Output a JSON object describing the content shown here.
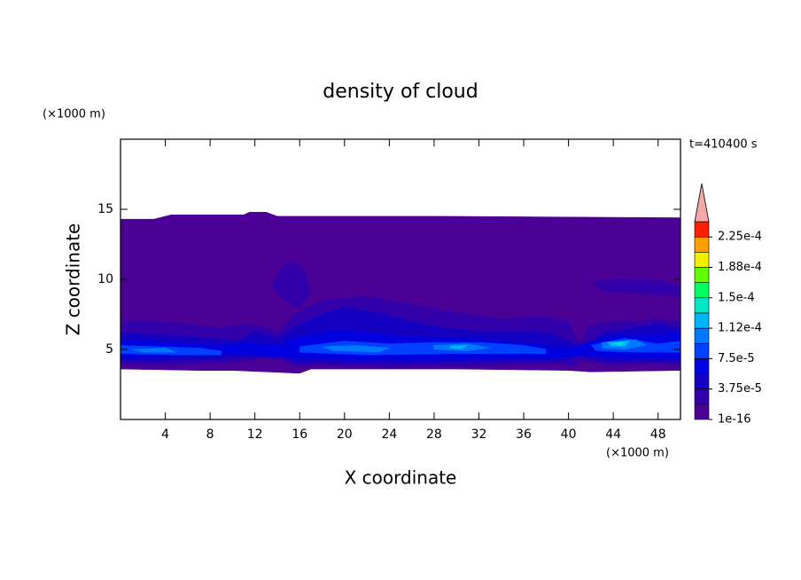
{
  "chart_data": {
    "type": "contour",
    "title": "density of cloud",
    "x_label": "X coordinate",
    "y_label": "Z coordinate",
    "x_unit": "(×1000 m)",
    "y_unit": "(×1000 m)",
    "time_label": "t=410400 s",
    "xlim": [
      0,
      50
    ],
    "ylim": [
      0,
      20
    ],
    "xticks": [
      4,
      8,
      12,
      16,
      20,
      24,
      28,
      32,
      36,
      40,
      44,
      48
    ],
    "yticks": [
      5,
      10,
      15
    ],
    "levels": [
      1e-16,
      1.875e-05,
      3.75e-05,
      5.625e-05,
      7.5e-05,
      9.375e-05,
      0.0001125,
      0.00013125,
      0.00015,
      0.00016875,
      0.0001875,
      0.00020625,
      0.000225,
      0.00024375
    ],
    "colors": [
      "#4b0096",
      "#3200aa",
      "#1400c0",
      "#0000e0",
      "#0040ff",
      "#0078ff",
      "#00b4ff",
      "#00e8c8",
      "#00ff60",
      "#60ff00",
      "#f0f000",
      "#ffa000",
      "#ff2000"
    ],
    "extend_color": "#f4a8a8",
    "colorbar_ticks": [
      {
        "value": 1e-16,
        "label": "1e-16"
      },
      {
        "value": 3.75e-05,
        "label": "3.75e-5"
      },
      {
        "value": 7.5e-05,
        "label": "7.5e-5"
      },
      {
        "value": 0.0001125,
        "label": "1.12e-4"
      },
      {
        "value": 0.00015,
        "label": "1.5e-4"
      },
      {
        "value": 0.0001875,
        "label": "1.88e-4"
      },
      {
        "value": 0.000225,
        "label": "2.25e-4"
      }
    ],
    "regions": [
      {
        "level": 1e-16,
        "x": [
          0,
          3,
          4.5,
          11,
          11.5,
          13,
          14,
          29,
          50,
          50,
          42,
          40,
          30,
          17,
          16,
          13,
          10,
          7,
          0
        ],
        "z": [
          14.3,
          14.3,
          14.6,
          14.6,
          14.8,
          14.8,
          14.5,
          14.5,
          14.4,
          3.5,
          3.4,
          3.5,
          3.6,
          3.6,
          3.3,
          3.4,
          3.5,
          3.5,
          3.6
        ]
      },
      {
        "level": 1.875e-05,
        "x": [
          0,
          3,
          6,
          9,
          11,
          12.5,
          14,
          15.5,
          18,
          22,
          26,
          30,
          34,
          38,
          40,
          41,
          42,
          44,
          46,
          48,
          50,
          50,
          47,
          44,
          41,
          40.5,
          39,
          36,
          32,
          28,
          24,
          20,
          17,
          15.5,
          14.5,
          13,
          11,
          8,
          4,
          0
        ],
        "z": [
          7,
          7,
          6.8,
          6.5,
          6.8,
          6.7,
          6.2,
          7.5,
          8.5,
          8.8,
          8.2,
          7.6,
          7.2,
          7.3,
          7,
          5.5,
          6.8,
          7,
          7,
          7.2,
          7,
          3.9,
          4,
          3.9,
          4.2,
          3.8,
          4,
          3.9,
          3.8,
          3.8,
          3.7,
          3.8,
          3.9,
          3.8,
          4.2,
          4.4,
          4.1,
          4,
          3.9,
          4
        ]
      },
      {
        "level": 1.875e-05,
        "x": [
          13.5,
          14.5,
          15.5,
          16.5,
          17,
          16,
          15,
          14
        ],
        "z": [
          9.5,
          11,
          11.3,
          10.5,
          9,
          8,
          8.3,
          9
        ]
      },
      {
        "level": 1.875e-05,
        "x": [
          42,
          44,
          48,
          50,
          50,
          46,
          43
        ],
        "z": [
          9.7,
          10,
          9.9,
          9.5,
          8.8,
          9,
          9.2
        ]
      },
      {
        "level": 3.75e-05,
        "x": [
          0,
          4,
          8,
          10.5,
          12,
          14,
          16,
          18,
          20,
          23,
          26,
          29,
          32,
          35,
          38,
          40,
          41.5,
          43,
          46,
          48,
          50,
          50,
          46,
          43,
          41,
          40,
          36,
          30,
          24,
          18,
          16,
          14.5,
          12,
          9,
          5,
          0
        ],
        "z": [
          6.2,
          6,
          5.8,
          5.6,
          6.3,
          5.8,
          6.8,
          7.5,
          8,
          7.6,
          7,
          6.5,
          6.3,
          6.3,
          6.2,
          5.6,
          5,
          6.2,
          6.6,
          6.8,
          6.5,
          4.1,
          4.2,
          4.1,
          4.6,
          4.2,
          4.2,
          4.1,
          4,
          4.1,
          4,
          4.4,
          4.5,
          4.3,
          4.2,
          4.2
        ]
      },
      {
        "level": 5.625e-05,
        "x": [
          0,
          5,
          9,
          11,
          14,
          16,
          19,
          22,
          25,
          28,
          31,
          34,
          37,
          40,
          42,
          44,
          47,
          50,
          50,
          45,
          42,
          38,
          30,
          22,
          16,
          12,
          8,
          4,
          0
        ],
        "z": [
          5.7,
          5.5,
          5.3,
          5.5,
          5.3,
          5.9,
          6.3,
          6.2,
          5.9,
          5.8,
          5.8,
          5.6,
          5.4,
          5,
          5.6,
          6,
          6,
          6.2,
          4.4,
          4.4,
          4.6,
          4.4,
          4.3,
          4.3,
          4.4,
          4.6,
          4.7,
          4.5,
          4.4
        ]
      },
      {
        "level": 7.5e-05,
        "x": [
          0,
          3,
          7,
          9,
          9,
          5,
          0
        ],
        "z": [
          5.3,
          5.2,
          5.1,
          4.9,
          4.6,
          4.6,
          4.7
        ]
      },
      {
        "level": 7.5e-05,
        "x": [
          16,
          20,
          24,
          28,
          32,
          36,
          38,
          38,
          30,
          22,
          16
        ],
        "z": [
          5.2,
          5.6,
          5.4,
          5.5,
          5.5,
          5.3,
          5,
          4.7,
          4.7,
          4.6,
          4.8
        ]
      },
      {
        "level": 7.5e-05,
        "x": [
          42,
          45,
          48,
          50,
          50,
          46,
          42.5
        ],
        "z": [
          5.3,
          5.8,
          5.4,
          5.6,
          4.8,
          4.8,
          4.9
        ]
      },
      {
        "level": 9.375e-05,
        "x": [
          18,
          21,
          24,
          23,
          19
        ],
        "z": [
          5.2,
          5.3,
          5.1,
          4.8,
          4.9
        ]
      },
      {
        "level": 9.375e-05,
        "x": [
          28,
          31,
          33,
          31,
          28
        ],
        "z": [
          5.3,
          5.4,
          5.1,
          4.9,
          5
        ]
      },
      {
        "level": 9.375e-05,
        "x": [
          43,
          46,
          47,
          45,
          43
        ],
        "z": [
          5.5,
          5.7,
          5.3,
          5,
          5.1
        ]
      },
      {
        "level": 9.375e-05,
        "x": [
          1,
          4,
          5,
          2
        ],
        "z": [
          5,
          5.1,
          4.8,
          4.8
        ]
      },
      {
        "level": 0.0001125,
        "x": [
          29.5,
          31,
          30.5,
          29.4
        ],
        "z": [
          5.25,
          5.3,
          5.05,
          5.1
        ]
      },
      {
        "level": 0.0001125,
        "x": [
          43.5,
          45.5,
          45,
          43.8
        ],
        "z": [
          5.5,
          5.6,
          5.2,
          5.25
        ]
      },
      {
        "level": 0.00013125,
        "x": [
          44,
          45,
          44.6
        ],
        "z": [
          5.45,
          5.5,
          5.3
        ]
      }
    ]
  }
}
